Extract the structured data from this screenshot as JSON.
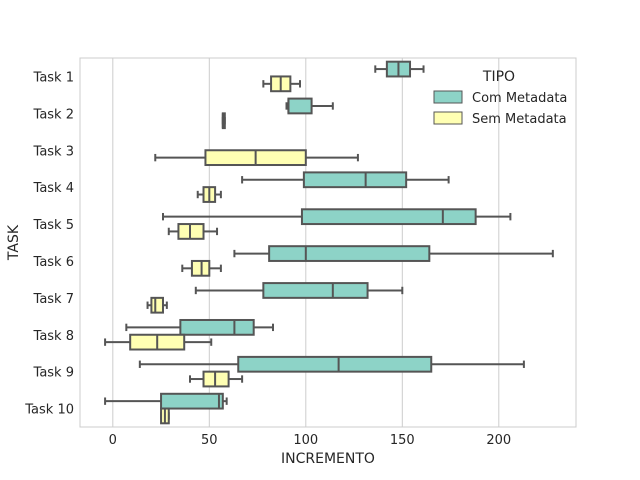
{
  "chart_data": {
    "type": "boxplot-horizontal",
    "xlabel": "INCREMENTO",
    "ylabel": "TASK",
    "xlim": [
      -17,
      240
    ],
    "xticks": [
      0,
      50,
      100,
      150,
      200
    ],
    "grid": "vertical",
    "legend": {
      "title": "TIPO",
      "placement": "top-right"
    },
    "categories": [
      "Task 1",
      "Task 2",
      "Task 3",
      "Task 4",
      "Task 5",
      "Task 6",
      "Task 7",
      "Task 8",
      "Task 9",
      "Task 10"
    ],
    "series": [
      {
        "name": "Com Metadata",
        "color": "#8dd3c7",
        "boxes": [
          {
            "whislo": 136,
            "q1": 142,
            "med": 148,
            "q3": 154,
            "whishi": 161
          },
          {
            "whislo": 90,
            "q1": 91,
            "med": 91,
            "q3": 103,
            "whishi": 114
          },
          null,
          {
            "whislo": 67,
            "q1": 99,
            "med": 131,
            "q3": 152,
            "whishi": 174
          },
          {
            "whislo": 26,
            "q1": 98,
            "med": 171,
            "q3": 188,
            "whishi": 206
          },
          {
            "whislo": 63,
            "q1": 81,
            "med": 100,
            "q3": 164,
            "whishi": 228
          },
          {
            "whislo": 43,
            "q1": 78,
            "med": 114,
            "q3": 132,
            "whishi": 150
          },
          {
            "whislo": 7,
            "q1": 35,
            "med": 63,
            "q3": 73,
            "whishi": 83
          },
          {
            "whislo": 14,
            "q1": 65,
            "med": 117,
            "q3": 165,
            "whishi": 213
          },
          {
            "whislo": -4,
            "q1": 25,
            "med": 55,
            "q3": 57,
            "whishi": 59
          }
        ]
      },
      {
        "name": "Sem Metadata",
        "color": "#ffffb3",
        "boxes": [
          {
            "whislo": 78,
            "q1": 82,
            "med": 87,
            "q3": 92,
            "whishi": 97
          },
          {
            "whislo": 57,
            "q1": 57,
            "med": 57,
            "q3": 57,
            "whishi": 58
          },
          {
            "whislo": 22,
            "q1": 48,
            "med": 74,
            "q3": 100,
            "whishi": 127
          },
          {
            "whislo": 44,
            "q1": 47,
            "med": 50,
            "q3": 53,
            "whishi": 56
          },
          {
            "whislo": 29,
            "q1": 34,
            "med": 40,
            "q3": 47,
            "whishi": 54
          },
          {
            "whislo": 36,
            "q1": 41,
            "med": 46,
            "q3": 50,
            "whishi": 56
          },
          {
            "whislo": 18,
            "q1": 20,
            "med": 22,
            "q3": 26,
            "whishi": 28
          },
          {
            "whislo": -4,
            "q1": 9,
            "med": 23,
            "q3": 37,
            "whishi": 51
          },
          {
            "whislo": 40,
            "q1": 47,
            "med": 53,
            "q3": 60,
            "whishi": 67
          },
          {
            "whislo": 25,
            "q1": 25,
            "med": 27,
            "q3": 29,
            "whishi": 29
          }
        ]
      }
    ]
  }
}
